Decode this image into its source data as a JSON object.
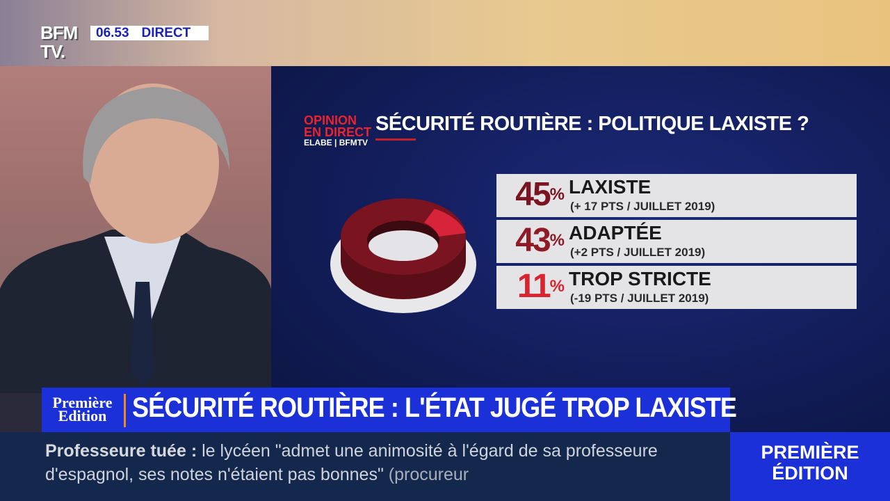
{
  "channel": {
    "logo": "BFM TV.",
    "time": "06.53",
    "live_label": "DIRECT"
  },
  "graphic": {
    "source_logo": {
      "line1": "OPINION",
      "line2": "EN DIRECT",
      "line3": "ELABE | BFMTV"
    },
    "title": "SÉCURITÉ ROUTIÈRE : POLITIQUE LAXISTE ?",
    "results": [
      {
        "percent": "45",
        "unit": "%",
        "label": "LAXISTE",
        "change": "(+ 17 PTS / JUILLET 2019)",
        "color": "#7a1420",
        "value": 45
      },
      {
        "percent": "43",
        "unit": "%",
        "label": "ADAPTÉE",
        "change": "(+2 PTS / JUILLET 2019)",
        "color": "#8e1b26",
        "value": 43
      },
      {
        "percent": "11",
        "unit": "%",
        "label": "TROP STRICTE",
        "change": "(-19 PTS / JUILLET 2019)",
        "color": "#d8242e",
        "value": 11
      }
    ]
  },
  "lower_third": {
    "show_logo": "Première Edition",
    "headline": "SÉCURITÉ ROUTIÈRE : L'ÉTAT JUGÉ TROP LAXISTE"
  },
  "ticker": {
    "topic": "Professeure tuée",
    "colon": ":",
    "text": "le lycéen \"admet une animosité à l'égard de sa professeure d'espagnol, ses notes n'étaient pas bonnes\"",
    "source": "(procureur"
  },
  "brand_box": {
    "line1": "PREMIÈRE",
    "line2": "ÉDITION"
  }
}
